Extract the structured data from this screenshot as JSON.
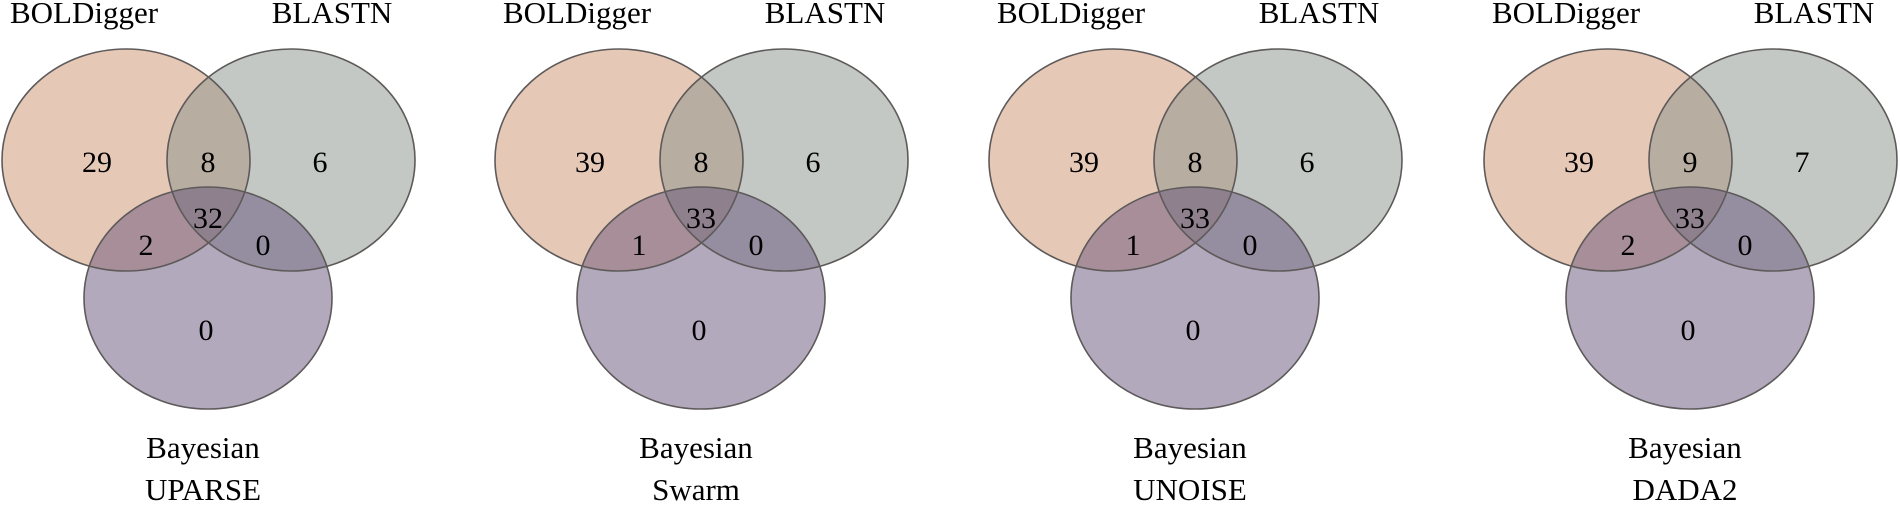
{
  "set_colors": {
    "BOLDigger": "#cd916e",
    "BLASTN": "#87918c",
    "Bayesian": "#67537b"
  },
  "chart_data": [
    {
      "type": "venn3",
      "title": "UPARSE",
      "sets": [
        "BOLDigger",
        "BLASTN",
        "Bayesian"
      ],
      "regions": {
        "A": 29,
        "AB": 8,
        "B": 6,
        "AC": 2,
        "ABC": 32,
        "BC": 0,
        "C": 0
      }
    },
    {
      "type": "venn3",
      "title": "Swarm",
      "sets": [
        "BOLDigger",
        "BLASTN",
        "Bayesian"
      ],
      "regions": {
        "A": 39,
        "AB": 8,
        "B": 6,
        "AC": 1,
        "ABC": 33,
        "BC": 0,
        "C": 0
      }
    },
    {
      "type": "venn3",
      "title": "UNOISE",
      "sets": [
        "BOLDigger",
        "BLASTN",
        "Bayesian"
      ],
      "regions": {
        "A": 39,
        "AB": 8,
        "B": 6,
        "AC": 1,
        "ABC": 33,
        "BC": 0,
        "C": 0
      }
    },
    {
      "type": "venn3",
      "title": "DADA2",
      "sets": [
        "BOLDigger",
        "BLASTN",
        "Bayesian"
      ],
      "regions": {
        "A": 39,
        "AB": 9,
        "B": 7,
        "AC": 2,
        "ABC": 33,
        "BC": 0,
        "C": 0
      }
    }
  ]
}
